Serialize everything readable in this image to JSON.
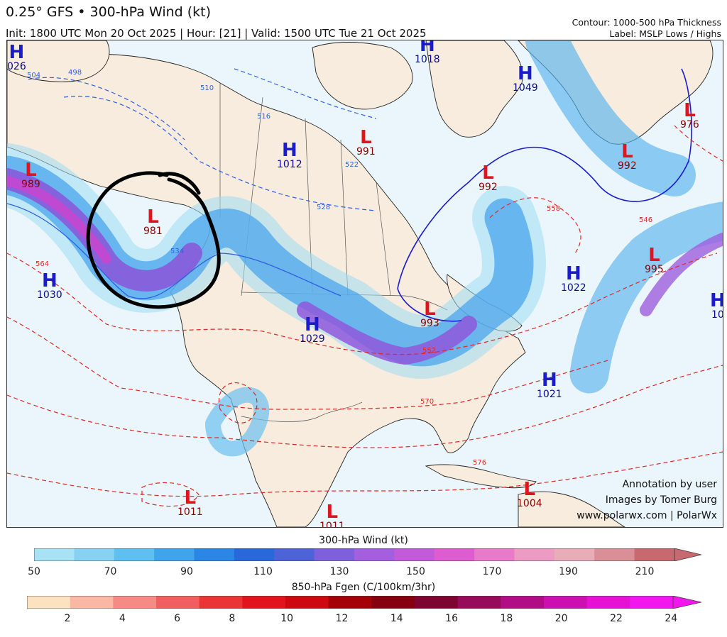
{
  "header": {
    "title": "0.25° GFS • 300-hPa Wind (kt)",
    "subtitle": "Init: 1800 UTC Mon 20 Oct 2025 | Hour: [21] | Valid: 1500 UTC Tue 21 Oct 2025",
    "right_line1": "Contour: 1000-500 hPa Thickness",
    "right_line2": "Label: MSLP Lows / Highs"
  },
  "map": {
    "pressure_centers": [
      {
        "type": "H",
        "value": "026"
      },
      {
        "type": "H",
        "value": "1018"
      },
      {
        "type": "H",
        "value": "1049"
      },
      {
        "type": "L",
        "value": "976"
      },
      {
        "type": "H",
        "value": "1012"
      },
      {
        "type": "L",
        "value": "991"
      },
      {
        "type": "L",
        "value": "992"
      },
      {
        "type": "L",
        "value": "992"
      },
      {
        "type": "L",
        "value": "989"
      },
      {
        "type": "L",
        "value": "981"
      },
      {
        "type": "H",
        "value": "1030"
      },
      {
        "type": "L",
        "value": "995"
      },
      {
        "type": "H",
        "value": "1022"
      },
      {
        "type": "H",
        "value": "10"
      },
      {
        "type": "L",
        "value": "993"
      },
      {
        "type": "H",
        "value": "1029"
      },
      {
        "type": "H",
        "value": "1021"
      },
      {
        "type": "L",
        "value": "1011"
      },
      {
        "type": "L",
        "value": "1004"
      },
      {
        "type": "L",
        "value": "1011"
      }
    ],
    "contour_labels": [
      "498",
      "504",
      "510",
      "516",
      "522",
      "528",
      "534",
      "546",
      "552",
      "558",
      "564",
      "570",
      "576"
    ],
    "annotation": "user-drawn black circle over Gulf of Alaska low"
  },
  "credits": {
    "line1": "Annotation by user",
    "line2": "Images by Tomer Burg",
    "line3": "www.polarwx.com | PolarWx"
  },
  "colorbars": {
    "wind": {
      "label": "300-hPa Wind (kt)",
      "ticks": [
        "50",
        "70",
        "90",
        "110",
        "130",
        "150",
        "170",
        "190",
        "210"
      ],
      "colors": [
        "#a8e2f5",
        "#87d2f2",
        "#5fbff0",
        "#3fa4ec",
        "#2b86e6",
        "#2968da",
        "#4f63d8",
        "#7e60dc",
        "#a35fde",
        "#c35ad9",
        "#dd5dd0",
        "#e87ac9",
        "#ec9bc3",
        "#e8adb6",
        "#d98e98",
        "#c8686f"
      ]
    },
    "fgen": {
      "label": "850-hPa Fgen (C/100km/3hr)",
      "ticks": [
        "2",
        "4",
        "6",
        "8",
        "10",
        "12",
        "14",
        "16",
        "18",
        "20",
        "22",
        "24"
      ],
      "colors": [
        "#fde2c0",
        "#f9b7a4",
        "#f58b84",
        "#f05e60",
        "#ea3535",
        "#e1141b",
        "#cc0810",
        "#a3000a",
        "#86000f",
        "#7d0530",
        "#960b5a",
        "#b10e86",
        "#cc0fb0",
        "#e512d6",
        "#f116ee"
      ]
    }
  }
}
